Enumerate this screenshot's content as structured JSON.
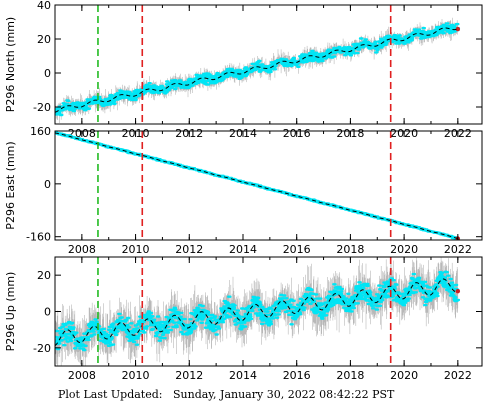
{
  "footer": {
    "label": "Plot Last Updated:",
    "timestamp": "Sunday, January 30, 2022 08:42:22 PST"
  },
  "colors": {
    "data_points": "#00e5f5",
    "error_bars": "#b8b8b8",
    "model_line": "#000000",
    "event_green": "#22bb22",
    "event_red": "#e02020",
    "latest_point": "#cc2222"
  },
  "chart_data": [
    {
      "type": "scatter",
      "station": "P296",
      "ylabel": "P296 North (mm)",
      "xlim": [
        2007.0,
        2022.9
      ],
      "ylim": [
        -30,
        40
      ],
      "xticks": [
        2008,
        2010,
        2012,
        2014,
        2016,
        2018,
        2020,
        2022
      ],
      "yticks": [
        -20,
        0,
        20,
        40
      ],
      "trend": {
        "start": [
          2007.0,
          -22
        ],
        "end": [
          2022.0,
          27
        ]
      },
      "seasonal_amplitude": 1.2,
      "scatter_sd": 2.0,
      "error_sd": 3.0,
      "vlines": [
        {
          "x": 2008.6,
          "color": "green"
        },
        {
          "x": 2010.25,
          "color": "red"
        },
        {
          "x": 2019.5,
          "color": "red"
        }
      ]
    },
    {
      "type": "scatter",
      "station": "P296",
      "ylabel": "P296 East (mm)",
      "xlim": [
        2007.0,
        2022.9
      ],
      "ylim": [
        -170,
        160
      ],
      "xticks": [
        2008,
        2010,
        2012,
        2014,
        2016,
        2018,
        2020,
        2022
      ],
      "yticks": [
        -160,
        0,
        160
      ],
      "trend": {
        "start": [
          2007.0,
          155
        ],
        "end": [
          2022.0,
          -165
        ]
      },
      "seasonal_amplitude": 0.5,
      "scatter_sd": 1.5,
      "error_sd": 2.0,
      "vlines": [
        {
          "x": 2008.6,
          "color": "green"
        },
        {
          "x": 2010.25,
          "color": "red"
        },
        {
          "x": 2019.5,
          "color": "red"
        }
      ]
    },
    {
      "type": "scatter",
      "station": "P296",
      "ylabel": "P296 Up (mm)",
      "xlim": [
        2007.0,
        2022.9
      ],
      "ylim": [
        -30,
        30
      ],
      "xticks": [
        2008,
        2010,
        2012,
        2014,
        2016,
        2018,
        2020,
        2022
      ],
      "yticks": [
        -20,
        0,
        20
      ],
      "trend": {
        "start": [
          2007.0,
          -15
        ],
        "end": [
          2022.0,
          15
        ]
      },
      "seasonal_amplitude": 4.0,
      "scatter_sd": 4.0,
      "error_sd": 8.0,
      "vlines": [
        {
          "x": 2008.6,
          "color": "green"
        },
        {
          "x": 2010.25,
          "color": "red"
        },
        {
          "x": 2019.5,
          "color": "red"
        }
      ]
    }
  ]
}
